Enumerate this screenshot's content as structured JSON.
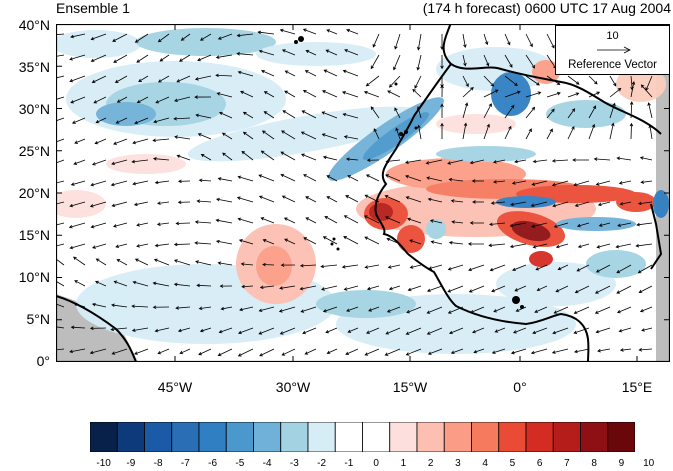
{
  "header": {
    "panel_label": "Ensemble 1",
    "forecast_info": "(174 h forecast) 0600 UTC 17 Aug 2004"
  },
  "map": {
    "lat_labels": [
      "40°N",
      "35°N",
      "30°N",
      "25°N",
      "20°N",
      "15°N",
      "10°N",
      "5°N",
      "0°"
    ],
    "lon_labels": [
      "45°W",
      "30°W",
      "15°W",
      "0°",
      "15°E"
    ],
    "lat_range": [
      0,
      40
    ],
    "lon_range": [
      -57.5,
      20
    ],
    "reference_vector": {
      "magnitude": "10",
      "label": "Reference Vector"
    },
    "land_color": "#bdbdbd"
  },
  "colorbar": {
    "labels": [
      "-10",
      "-9",
      "-8",
      "-7",
      "-6",
      "-5",
      "-4",
      "-3",
      "-2",
      "-1",
      "0",
      "1",
      "2",
      "3",
      "4",
      "5",
      "6",
      "7",
      "8",
      "9",
      "10"
    ],
    "colors": [
      "#08214a",
      "#0d3a7a",
      "#1a5aa6",
      "#2a6fb6",
      "#2f7fc2",
      "#4a98cc",
      "#6fb1d8",
      "#a3d3e2",
      "#d6edf6",
      "#ffffff",
      "#ffffff",
      "#fde0dd",
      "#fcbfb2",
      "#fb9c86",
      "#f57a5e",
      "#ea4b34",
      "#d42c22",
      "#b51d1a",
      "#8f1014",
      "#6a070a"
    ]
  }
}
